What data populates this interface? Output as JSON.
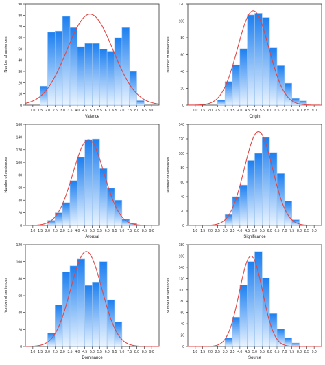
{
  "chart_data": [
    {
      "type": "bar",
      "xlabel": "Valence",
      "ylabel": "Number of sentences",
      "xlim": [
        0.5,
        9.5
      ],
      "ylim": [
        0,
        90
      ],
      "yticks": [
        0,
        10,
        20,
        30,
        40,
        50,
        60,
        70,
        80,
        90
      ],
      "xticks": [
        "1.0",
        "1.5",
        "2.0",
        "2.5",
        "3.0",
        "3.5",
        "4.0",
        "4.5",
        "5.0",
        "5.5",
        "6.0",
        "6.5",
        "7.0",
        "7.5",
        "8.0",
        "8.5",
        "9.0"
      ],
      "bin_width": 0.5,
      "bins": [
        1.5,
        2.0,
        2.5,
        3.0,
        3.5,
        4.0,
        4.5,
        5.0,
        5.5,
        6.0,
        6.5,
        7.0,
        7.5,
        8.0
      ],
      "values": [
        17,
        65,
        66,
        79,
        69,
        52,
        55,
        55,
        50,
        48,
        60,
        69,
        30,
        4
      ],
      "curve": {
        "mean": 4.85,
        "sd": 1.55,
        "peak": 81
      },
      "colors": {
        "bar_top": "#1c7ff0",
        "bar_bottom": "#eaf4ff",
        "edge": "#9cc4ee",
        "curve": "#e04545"
      }
    },
    {
      "type": "bar",
      "xlabel": "Origin",
      "ylabel": "Number of sentences",
      "xlim": [
        0.5,
        9.5
      ],
      "ylim": [
        0,
        120
      ],
      "yticks": [
        0,
        20,
        40,
        60,
        80,
        100,
        120
      ],
      "xticks": [
        "1.0",
        "1.5",
        "2.0",
        "2.5",
        "3.0",
        "3.5",
        "4.0",
        "4.5",
        "5.0",
        "5.5",
        "6.0",
        "6.5",
        "7.0",
        "7.5",
        "8.0",
        "8.5",
        "9.0"
      ],
      "bin_width": 0.5,
      "bins": [
        2.5,
        3.0,
        3.5,
        4.0,
        4.5,
        5.0,
        5.5,
        6.0,
        6.5,
        7.0,
        7.5,
        8.0
      ],
      "values": [
        6,
        28,
        48,
        67,
        107,
        109,
        104,
        68,
        47,
        26,
        8,
        5
      ],
      "curve": {
        "mean": 4.9,
        "sd": 1.05,
        "peak": 112
      },
      "colors": {
        "bar_top": "#1c7ff0",
        "bar_bottom": "#eaf4ff",
        "edge": "#9cc4ee",
        "curve": "#e04545"
      }
    },
    {
      "type": "bar",
      "xlabel": "Arousal",
      "ylabel": "Number of sentences",
      "xlim": [
        0.5,
        9.5
      ],
      "ylim": [
        0,
        160
      ],
      "yticks": [
        0,
        20,
        40,
        60,
        80,
        100,
        120,
        140,
        160
      ],
      "xticks": [
        "1.0",
        "1.5",
        "2.0",
        "2.5",
        "3.0",
        "3.5",
        "4.0",
        "4.5",
        "5.0",
        "5.5",
        "6.0",
        "6.5",
        "7.0",
        "7.5",
        "8.0",
        "8.5",
        "9.0"
      ],
      "bin_width": 0.5,
      "bins": [
        2.0,
        2.5,
        3.0,
        3.5,
        4.0,
        4.5,
        5.0,
        5.5,
        6.0,
        6.5,
        7.0,
        7.5
      ],
      "values": [
        8,
        20,
        36,
        71,
        108,
        136,
        137,
        90,
        59,
        40,
        10,
        4
      ],
      "curve": {
        "mean": 4.75,
        "sd": 1.05,
        "peak": 136
      },
      "colors": {
        "bar_top": "#1c7ff0",
        "bar_bottom": "#eaf4ff",
        "edge": "#9cc4ee",
        "curve": "#e04545"
      }
    },
    {
      "type": "bar",
      "xlabel": "Significance",
      "ylabel": "Number of sentences",
      "xlim": [
        0.5,
        9.5
      ],
      "ylim": [
        0,
        140
      ],
      "yticks": [
        0,
        20,
        40,
        60,
        80,
        100,
        120,
        140
      ],
      "xticks": [
        "1.0",
        "1.5",
        "2.0",
        "2.5",
        "3.0",
        "3.5",
        "4.0",
        "4.5",
        "5.0",
        "5.5",
        "6.0",
        "6.5",
        "7.0",
        "7.5",
        "8.0",
        "8.5",
        "9.0"
      ],
      "bin_width": 0.5,
      "bins": [
        3.0,
        3.5,
        4.0,
        4.5,
        5.0,
        5.5,
        6.0,
        6.5,
        7.0,
        7.5
      ],
      "values": [
        15,
        40,
        56,
        90,
        100,
        122,
        101,
        72,
        34,
        8
      ],
      "curve": {
        "mean": 5.25,
        "sd": 0.95,
        "peak": 130
      },
      "colors": {
        "bar_top": "#1c7ff0",
        "bar_bottom": "#eaf4ff",
        "edge": "#9cc4ee",
        "curve": "#e04545"
      }
    },
    {
      "type": "bar",
      "xlabel": "Dominance",
      "ylabel": "Number of sentences",
      "xlim": [
        0.5,
        9.5
      ],
      "ylim": [
        0,
        120
      ],
      "yticks": [
        0,
        20,
        40,
        60,
        80,
        100,
        120
      ],
      "xticks": [
        "1.0",
        "1.5",
        "2.0",
        "2.5",
        "3.0",
        "3.5",
        "4.0",
        "4.5",
        "5.0",
        "5.5",
        "6.0",
        "6.5",
        "7.0",
        "7.5",
        "8.0",
        "8.5",
        "9.0"
      ],
      "bin_width": 0.5,
      "bins": [
        2.0,
        2.5,
        3.0,
        3.5,
        4.0,
        4.5,
        5.0,
        5.5,
        6.0,
        6.5
      ],
      "values": [
        16,
        49,
        88,
        95,
        103,
        72,
        76,
        100,
        55,
        29
      ],
      "curve": {
        "mean": 4.6,
        "sd": 1.05,
        "peak": 112
      },
      "colors": {
        "bar_top": "#1c7ff0",
        "bar_bottom": "#eaf4ff",
        "edge": "#9cc4ee",
        "curve": "#e04545"
      }
    },
    {
      "type": "bar",
      "xlabel": "Source",
      "ylabel": "Number of sentences",
      "xlim": [
        0.5,
        9.5
      ],
      "ylim": [
        0,
        180
      ],
      "yticks": [
        0,
        20,
        40,
        60,
        80,
        100,
        120,
        140,
        160,
        180
      ],
      "xticks": [
        "1.0",
        "1.5",
        "2.0",
        "2.5",
        "3.0",
        "3.5",
        "4.0",
        "4.5",
        "5.0",
        "5.5",
        "6.0",
        "6.5",
        "7.0",
        "7.5",
        "8.0",
        "8.5",
        "9.0"
      ],
      "bin_width": 0.5,
      "bins": [
        3.0,
        3.5,
        4.0,
        4.5,
        5.0,
        5.5,
        6.0,
        6.5,
        7.0,
        7.5
      ],
      "values": [
        15,
        52,
        109,
        150,
        168,
        121,
        58,
        31,
        15,
        6
      ],
      "curve": {
        "mean": 4.75,
        "sd": 0.78,
        "peak": 160
      },
      "colors": {
        "bar_top": "#1c7ff0",
        "bar_bottom": "#eaf4ff",
        "edge": "#9cc4ee",
        "curve": "#e04545"
      }
    }
  ]
}
